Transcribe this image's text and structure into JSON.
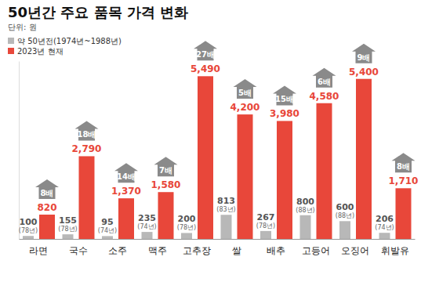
{
  "chart_data": {
    "type": "bar",
    "title": "50년간 주요 품목 가격 변화",
    "subtitle": "단위: 원",
    "categories": [
      "라면",
      "국수",
      "소주",
      "맥주",
      "고추장",
      "쌀",
      "배추",
      "고등어",
      "오징어",
      "휘발유"
    ],
    "series": [
      {
        "name": "약 50년전(1974년~1988년)",
        "color": "#b8b8b8",
        "values": [
          100,
          155,
          95,
          235,
          200,
          813,
          267,
          800,
          600,
          206
        ],
        "notes": [
          "(78년)",
          "(78년)",
          "(74년)",
          "(74년)",
          "(78년)",
          "(83년)",
          "(78년)",
          "(88년)",
          "(88년)",
          "(74년)"
        ]
      },
      {
        "name": "2023년 현재",
        "color": "#e8473a",
        "values": [
          820,
          2790,
          1370,
          1580,
          5490,
          4200,
          3980,
          4580,
          5400,
          1710
        ],
        "value_labels": [
          "820",
          "2,790",
          "1,370",
          "1,580",
          "5,490",
          "4,200",
          "3,980",
          "4,580",
          "5,400",
          "1,710"
        ],
        "notes": [
          "8배",
          "18배",
          "14배",
          "7배",
          "27배",
          "5배",
          "15배",
          "6배",
          "9배",
          "8배"
        ]
      }
    ],
    "ylim": [
      0,
      6000
    ],
    "yticks": [],
    "data_labels": true,
    "tick_labels": "x",
    "legend": "upper left"
  }
}
